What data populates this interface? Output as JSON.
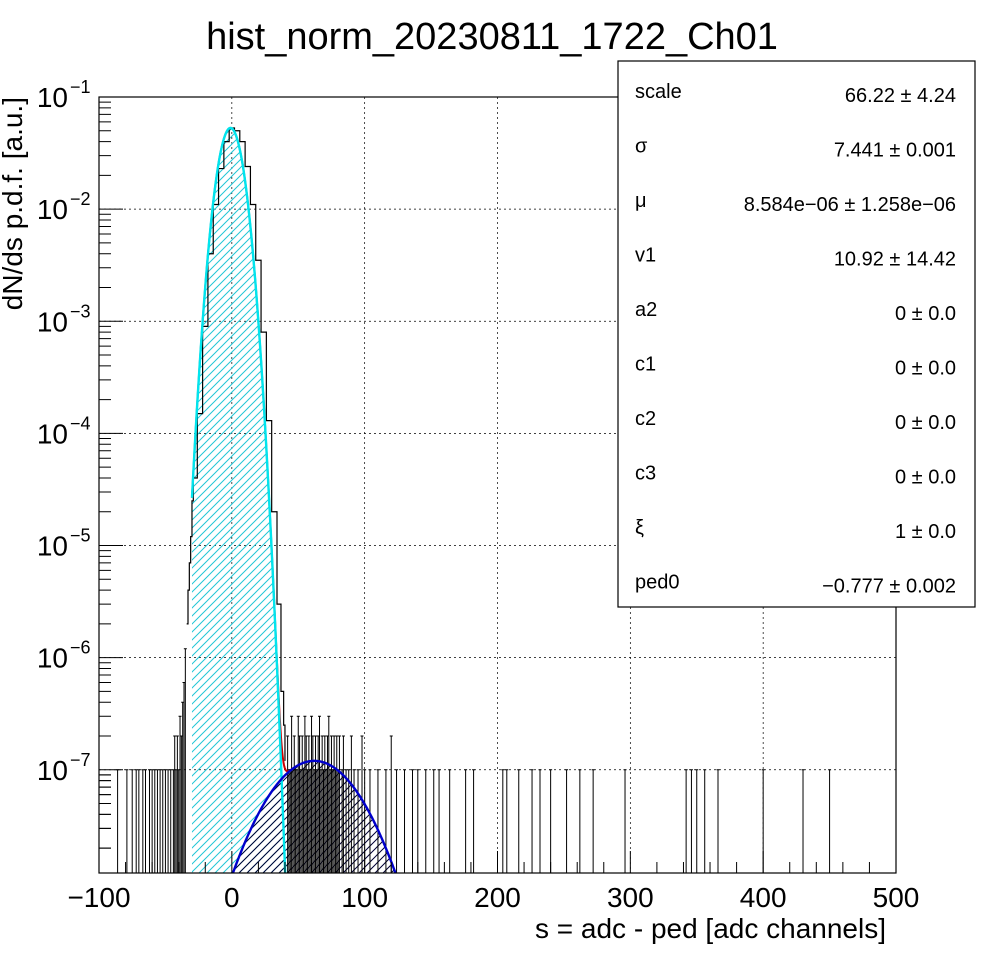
{
  "chart_data": {
    "type": "histogram",
    "title": "hist_norm_20230811_1722_Ch01",
    "xlabel": "s = adc - ped [adc channels]",
    "ylabel": "dN/ds p.d.f. [a.u.]",
    "xlim": [
      -100,
      500
    ],
    "ylim": [
      1.2e-08,
      0.1
    ],
    "yscale": "log",
    "grid": true,
    "x_ticks": [
      -100,
      0,
      100,
      200,
      300,
      400,
      500
    ],
    "y_ticks": [
      {
        "base": "10",
        "exp": "−1",
        "value": 0.1
      },
      {
        "base": "10",
        "exp": "−2",
        "value": 0.01
      },
      {
        "base": "10",
        "exp": "−3",
        "value": 0.001
      },
      {
        "base": "10",
        "exp": "−4",
        "value": 0.0001
      },
      {
        "base": "10",
        "exp": "−5",
        "value": 1e-05
      },
      {
        "base": "10",
        "exp": "−6",
        "value": 1e-06
      },
      {
        "base": "10",
        "exp": "−7",
        "value": 1e-07
      }
    ],
    "pedestal_peak": {
      "mu": -1,
      "sigma": 7.44,
      "amplitude": 0.053
    },
    "signal_component": {
      "mu": 62,
      "sigma": 28.5,
      "amplitude": 1.2e-07
    },
    "fit_range": [
      -30,
      42
    ],
    "histogram_core": [
      [
        -34,
        2e-06
      ],
      [
        -33,
        4e-06
      ],
      [
        -32,
        7e-06
      ],
      [
        -31,
        1.2e-05
      ],
      [
        -30,
        2.5e-05
      ],
      [
        -29,
        4e-05
      ],
      [
        -26,
        0.00015
      ],
      [
        -22,
        0.0009
      ],
      [
        -18,
        0.004
      ],
      [
        -14,
        0.011
      ],
      [
        -10,
        0.023
      ],
      [
        -6,
        0.04
      ],
      [
        -2,
        0.052
      ],
      [
        0,
        0.053
      ],
      [
        2,
        0.05
      ],
      [
        6,
        0.04
      ],
      [
        10,
        0.024
      ],
      [
        14,
        0.011
      ],
      [
        18,
        0.0035
      ],
      [
        22,
        0.0008
      ],
      [
        26,
        0.00013
      ],
      [
        30,
        2e-05
      ],
      [
        34,
        3e-06
      ],
      [
        37,
        5e-07
      ],
      [
        39,
        2.5e-07
      ],
      [
        40,
        1.2e-07
      ]
    ],
    "histogram_sparse": [
      [
        -86,
        1e-07
      ],
      [
        -79,
        1e-07
      ],
      [
        -75,
        1e-07
      ],
      [
        -72,
        1e-07
      ],
      [
        -70,
        1e-07
      ],
      [
        -67,
        1e-07
      ],
      [
        -65,
        1e-07
      ],
      [
        -62,
        1e-07
      ],
      [
        -60,
        1e-07
      ],
      [
        -58,
        1e-07
      ],
      [
        -56,
        1e-07
      ],
      [
        -54,
        1e-07
      ],
      [
        -52,
        1e-07
      ],
      [
        -50,
        1e-07
      ],
      [
        -48,
        1e-07
      ],
      [
        -46,
        1e-07
      ],
      [
        -44,
        1e-07
      ],
      [
        -43,
        2e-07
      ],
      [
        -42,
        1e-07
      ],
      [
        -41,
        2e-07
      ],
      [
        -40,
        1e-07
      ],
      [
        -39,
        3e-07
      ],
      [
        -38,
        2e-07
      ],
      [
        -37,
        4e-07
      ],
      [
        -36,
        6e-07
      ],
      [
        -35,
        1.2e-06
      ],
      [
        42,
        2e-07
      ],
      [
        43,
        1e-07
      ],
      [
        44,
        1e-07
      ],
      [
        45,
        3e-07
      ],
      [
        46,
        1e-07
      ],
      [
        47,
        2e-07
      ],
      [
        48,
        1e-07
      ],
      [
        49,
        1e-07
      ],
      [
        50,
        3e-07
      ],
      [
        51,
        2e-07
      ],
      [
        52,
        1e-07
      ],
      [
        53,
        2e-07
      ],
      [
        54,
        1e-07
      ],
      [
        55,
        3e-07
      ],
      [
        56,
        2e-07
      ],
      [
        57,
        1e-07
      ],
      [
        58,
        2e-07
      ],
      [
        59,
        1e-07
      ],
      [
        60,
        3e-07
      ],
      [
        61,
        2e-07
      ],
      [
        62,
        1e-07
      ],
      [
        63,
        2e-07
      ],
      [
        64,
        1e-07
      ],
      [
        65,
        2e-07
      ],
      [
        66,
        3e-07
      ],
      [
        67,
        1e-07
      ],
      [
        68,
        2e-07
      ],
      [
        69,
        1e-07
      ],
      [
        70,
        2e-07
      ],
      [
        71,
        1e-07
      ],
      [
        72,
        2e-07
      ],
      [
        73,
        3e-07
      ],
      [
        74,
        1e-07
      ],
      [
        75,
        2e-07
      ],
      [
        76,
        1e-07
      ],
      [
        77,
        2e-07
      ],
      [
        78,
        1e-07
      ],
      [
        79,
        2e-07
      ],
      [
        80,
        1e-07
      ],
      [
        81,
        2e-07
      ],
      [
        83,
        1e-07
      ],
      [
        84,
        2e-07
      ],
      [
        86,
        1e-07
      ],
      [
        88,
        1e-07
      ],
      [
        90,
        2e-07
      ],
      [
        92,
        1e-07
      ],
      [
        95,
        1e-07
      ],
      [
        98,
        2e-07
      ],
      [
        100,
        1e-07
      ],
      [
        104,
        1e-07
      ],
      [
        110,
        1e-07
      ],
      [
        116,
        1e-07
      ],
      [
        120,
        2e-07
      ],
      [
        124,
        1e-07
      ],
      [
        130,
        1e-07
      ],
      [
        136,
        1e-07
      ],
      [
        140,
        1e-07
      ],
      [
        146,
        1e-07
      ],
      [
        152,
        1e-07
      ],
      [
        156,
        1e-07
      ],
      [
        164,
        1e-07
      ],
      [
        176,
        1e-07
      ],
      [
        182,
        1e-07
      ],
      [
        204,
        1e-07
      ],
      [
        207,
        1e-07
      ],
      [
        216,
        1e-07
      ],
      [
        226,
        1e-07
      ],
      [
        232,
        1e-07
      ],
      [
        240,
        1e-07
      ],
      [
        252,
        1e-07
      ],
      [
        262,
        1e-07
      ],
      [
        272,
        1e-07
      ],
      [
        296,
        1e-07
      ],
      [
        342,
        1e-07
      ],
      [
        346,
        1e-07
      ],
      [
        350,
        1e-07
      ],
      [
        356,
        1e-07
      ],
      [
        366,
        1e-07
      ],
      [
        400,
        1e-07
      ],
      [
        430,
        1e-07
      ],
      [
        450,
        1e-07
      ]
    ],
    "stats_box": [
      {
        "name": "scale",
        "value": "66.22 ± 4.24"
      },
      {
        "name": "σ",
        "value": "7.441 ± 0.001"
      },
      {
        "name": "μ",
        "value": "8.584e−06 ± 1.258e−06"
      },
      {
        "name": "v1",
        "value": "10.92 ± 14.42"
      },
      {
        "name": "a2",
        "value": "0 ± 0.0"
      },
      {
        "name": "c1",
        "value": "0 ± 0.0"
      },
      {
        "name": "c2",
        "value": "0 ± 0.0"
      },
      {
        "name": "c3",
        "value": "0 ± 0.0"
      },
      {
        "name": "ξ",
        "value": "1 ± 0.0"
      },
      {
        "name": "ped0",
        "value": "−0.777 ± 0.002"
      }
    ],
    "colors": {
      "histogram": "#000000",
      "fit_total": "#cc0000",
      "pedestal_fit": "#00e5ee",
      "signal_fit": "#0000cc",
      "grid": "#000000"
    }
  }
}
